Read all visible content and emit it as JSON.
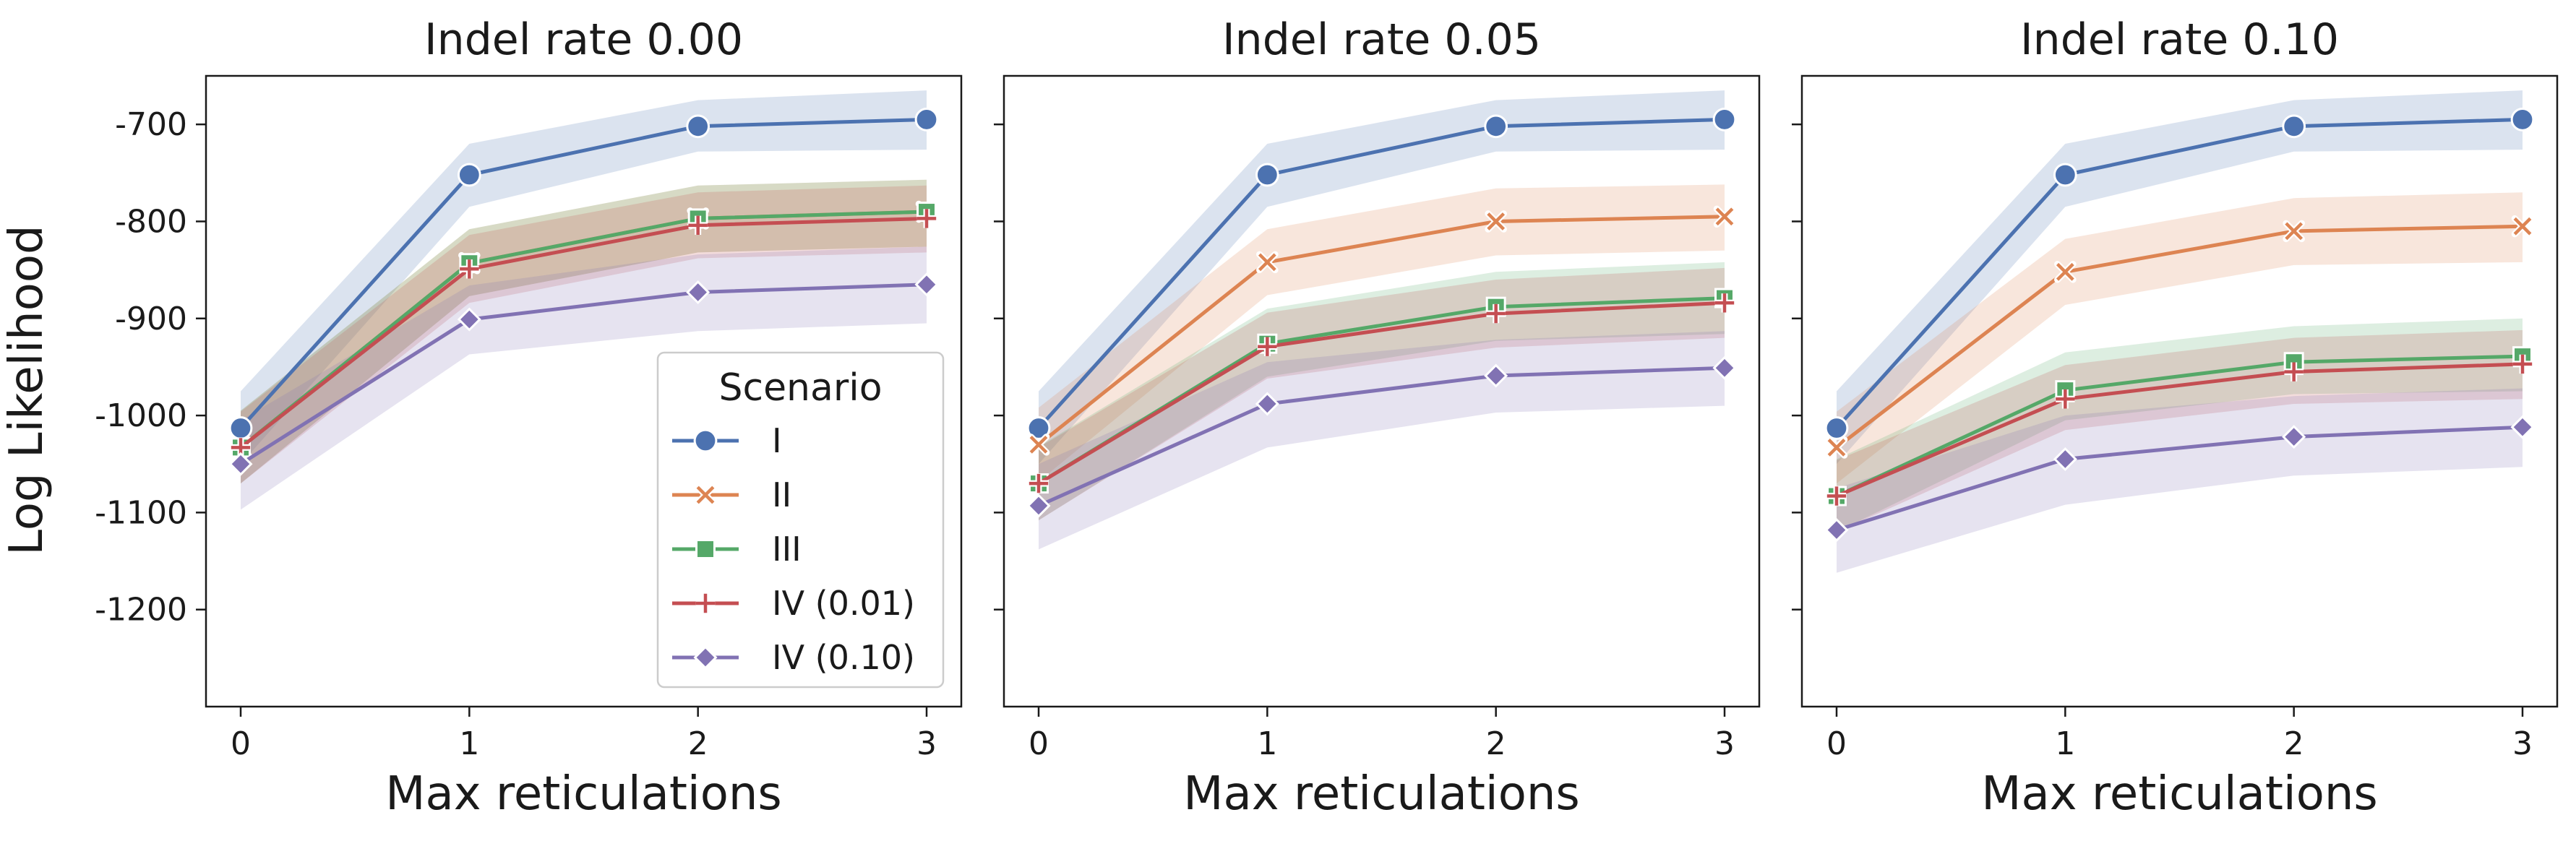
{
  "figure": {
    "ylabel": "Log Likelihood",
    "legend": {
      "title": "Scenario",
      "placement": "lower right (first panel)"
    }
  },
  "chart_data": [
    {
      "type": "line",
      "title": "Indel rate 0.00",
      "xlabel": "Max reticulations",
      "ylabel": "Log Likelihood",
      "x": [
        0,
        1,
        2,
        3
      ],
      "xticks": [
        "0",
        "1",
        "2",
        "3"
      ],
      "yticks": [
        "-700",
        "-800",
        "-900",
        "-1000",
        "-1100",
        "-1200"
      ],
      "ylim": [
        -1300,
        -650
      ],
      "grid": false,
      "series": [
        {
          "name": "I",
          "values": [
            -1013,
            -752,
            -702,
            -695
          ],
          "lower": [
            -1050,
            -785,
            -728,
            -726
          ],
          "upper": [
            -975,
            -720,
            -675,
            -665
          ]
        },
        {
          "name": "II",
          "values": [
            -1033,
            -843,
            -797,
            -790
          ],
          "lower": [
            -1070,
            -877,
            -832,
            -826
          ],
          "upper": [
            -995,
            -808,
            -763,
            -757
          ]
        },
        {
          "name": "III",
          "values": [
            -1033,
            -843,
            -797,
            -790
          ],
          "lower": [
            -1070,
            -877,
            -832,
            -826
          ],
          "upper": [
            -995,
            -808,
            -763,
            -757
          ]
        },
        {
          "name": "IV (0.01)",
          "values": [
            -1033,
            -849,
            -804,
            -797
          ],
          "lower": [
            -1070,
            -884,
            -838,
            -832
          ],
          "upper": [
            -996,
            -814,
            -770,
            -763
          ]
        },
        {
          "name": "IV (0.10)",
          "values": [
            -1050,
            -901,
            -873,
            -865
          ],
          "lower": [
            -1097,
            -937,
            -913,
            -905
          ],
          "upper": [
            -1005,
            -866,
            -834,
            -826
          ]
        }
      ]
    },
    {
      "type": "line",
      "title": "Indel rate 0.05",
      "xlabel": "Max reticulations",
      "x": [
        0,
        1,
        2,
        3
      ],
      "xticks": [
        "0",
        "1",
        "2",
        "3"
      ],
      "ylim": [
        -1300,
        -650
      ],
      "grid": false,
      "series": [
        {
          "name": "I",
          "values": [
            -1013,
            -752,
            -702,
            -695
          ],
          "lower": [
            -1050,
            -785,
            -728,
            -726
          ],
          "upper": [
            -975,
            -720,
            -675,
            -665
          ]
        },
        {
          "name": "II",
          "values": [
            -1030,
            -842,
            -800,
            -795
          ],
          "lower": [
            -1068,
            -876,
            -835,
            -830
          ],
          "upper": [
            -992,
            -808,
            -766,
            -762
          ]
        },
        {
          "name": "III",
          "values": [
            -1070,
            -926,
            -888,
            -879
          ],
          "lower": [
            -1108,
            -960,
            -923,
            -916
          ],
          "upper": [
            -1032,
            -890,
            -852,
            -842
          ]
        },
        {
          "name": "IV (0.01)",
          "values": [
            -1070,
            -929,
            -895,
            -884
          ],
          "lower": [
            -1108,
            -962,
            -930,
            -920
          ],
          "upper": [
            -1033,
            -894,
            -860,
            -848
          ]
        },
        {
          "name": "IV (0.10)",
          "values": [
            -1093,
            -988,
            -959,
            -951
          ],
          "lower": [
            -1138,
            -1033,
            -997,
            -990
          ],
          "upper": [
            -1050,
            -945,
            -922,
            -913
          ]
        }
      ]
    },
    {
      "type": "line",
      "title": "Indel rate 0.10",
      "xlabel": "Max reticulations",
      "x": [
        0,
        1,
        2,
        3
      ],
      "xticks": [
        "0",
        "1",
        "2",
        "3"
      ],
      "ylim": [
        -1300,
        -650
      ],
      "grid": false,
      "series": [
        {
          "name": "I",
          "values": [
            -1013,
            -752,
            -702,
            -695
          ],
          "lower": [
            -1050,
            -785,
            -728,
            -726
          ],
          "upper": [
            -975,
            -720,
            -675,
            -665
          ]
        },
        {
          "name": "II",
          "values": [
            -1033,
            -852,
            -810,
            -805
          ],
          "lower": [
            -1070,
            -886,
            -845,
            -842
          ],
          "upper": [
            -996,
            -818,
            -776,
            -770
          ]
        },
        {
          "name": "III",
          "values": [
            -1083,
            -974,
            -945,
            -939
          ],
          "lower": [
            -1120,
            -1005,
            -978,
            -975
          ],
          "upper": [
            -1045,
            -935,
            -908,
            -900
          ]
        },
        {
          "name": "IV (0.01)",
          "values": [
            -1083,
            -983,
            -955,
            -947
          ],
          "lower": [
            -1120,
            -1015,
            -988,
            -983
          ],
          "upper": [
            -1046,
            -948,
            -920,
            -912
          ]
        },
        {
          "name": "IV (0.10)",
          "values": [
            -1118,
            -1045,
            -1022,
            -1012
          ],
          "lower": [
            -1162,
            -1092,
            -1062,
            -1053
          ],
          "upper": [
            -1075,
            -1000,
            -980,
            -972
          ]
        }
      ]
    }
  ],
  "colors": {
    "I": "#4c72b0",
    "II": "#dd8452",
    "III": "#55a868",
    "IV (0.01)": "#c44e52",
    "IV (0.10)": "#8172b3"
  },
  "markers": {
    "I": "circle",
    "II": "x",
    "III": "square",
    "IV (0.01)": "plus",
    "IV (0.10)": "diamond"
  }
}
